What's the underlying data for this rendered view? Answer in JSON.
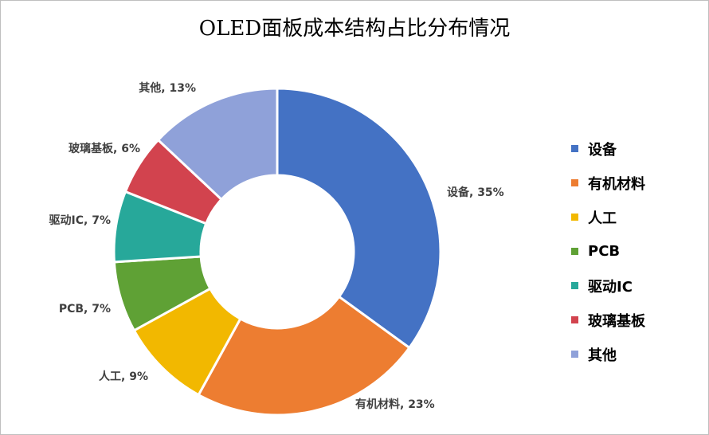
{
  "chart_data": {
    "type": "pie",
    "title": "OLED面板成本结构占比分布情况",
    "legend_position": "right",
    "categories": [
      "设备",
      "有机材料",
      "人工",
      "PCB",
      "驱动IC",
      "玻璃基板",
      "其他"
    ],
    "values": [
      35,
      23,
      9,
      7,
      7,
      6,
      13
    ],
    "colors": [
      "#4472C4",
      "#ED7D31",
      "#F2B800",
      "#5FA135",
      "#27A89A",
      "#D2434E",
      "#8FA1D9"
    ],
    "data_labels": [
      "设备, 35%",
      "有机材料, 23%",
      "人工, 9%",
      "PCB, 7%",
      "驱动IC, 7%",
      "玻璃基板, 6%",
      "其他, 13%"
    ]
  }
}
